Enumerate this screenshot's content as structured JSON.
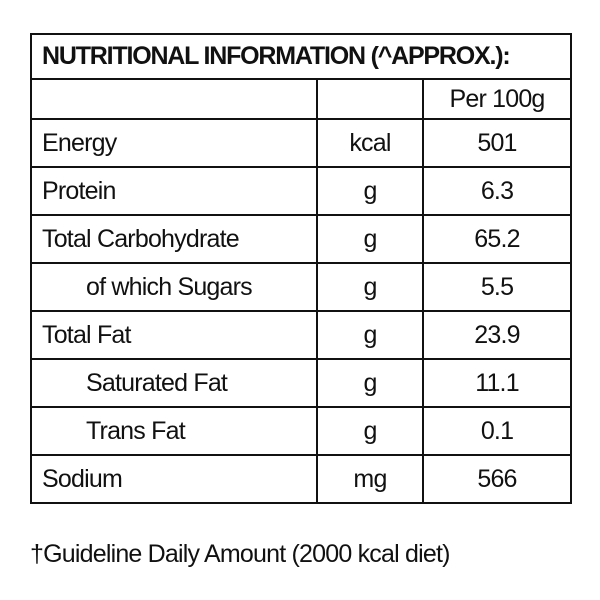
{
  "table": {
    "title": "NUTRITIONAL INFORMATION (^APPROX.):",
    "header": [
      "",
      "",
      "Per 100g"
    ],
    "rows": [
      [
        "Energy",
        "kcal",
        "501"
      ],
      [
        "Protein",
        "g",
        "6.3"
      ],
      [
        "Total Carbohydrate",
        "g",
        "65.2"
      ],
      [
        "of which Sugars",
        "g",
        "5.5"
      ],
      [
        "Total Fat",
        "g",
        "23.9"
      ],
      [
        "Saturated Fat",
        "g",
        "11.1"
      ],
      [
        "Trans Fat",
        "g",
        "0.1"
      ],
      [
        "Sodium",
        "mg",
        "566"
      ]
    ]
  },
  "footnote": "†Guideline Daily Amount (2000 kcal diet)"
}
